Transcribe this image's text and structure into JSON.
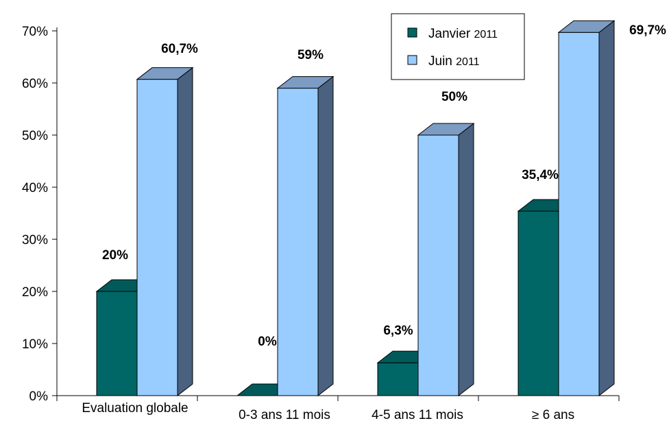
{
  "chart_data": {
    "type": "bar",
    "categories": [
      "Evaluation globale",
      "0-3 ans 11 mois",
      "4-5 ans 11 mois",
      "≥ 6 ans"
    ],
    "series": [
      {
        "name": "Janvier 2011",
        "values": [
          20,
          0,
          6.3,
          35.4
        ],
        "labels": [
          "20%",
          "0%",
          "6,3%",
          "35,4%"
        ],
        "color": "#006666"
      },
      {
        "name": "Juin 2011",
        "values": [
          60.7,
          59,
          50,
          69.7
        ],
        "labels": [
          "60,7%",
          "59%",
          "50%",
          "69,7%"
        ],
        "color": "#99ccff"
      }
    ],
    "yticks": [
      "0%",
      "10%",
      "20%",
      "30%",
      "40%",
      "50%",
      "60%",
      "70%"
    ],
    "ylim": [
      0,
      70
    ],
    "legend": {
      "position": "top-right",
      "items": [
        {
          "name": "Janvier",
          "suffix": "2011"
        },
        {
          "name": "Juin",
          "suffix": "2011"
        }
      ]
    },
    "style": "3d"
  }
}
